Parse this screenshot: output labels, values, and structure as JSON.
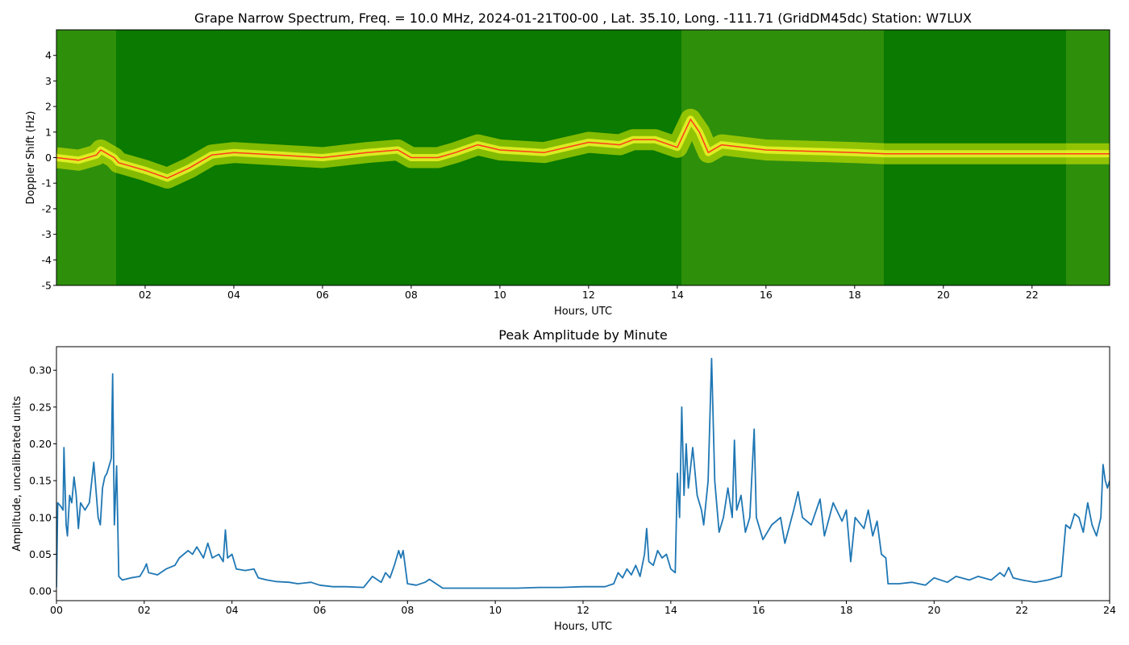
{
  "chart_data": [
    {
      "type": "spectrogram",
      "title": "Grape Narrow Spectrum, Freq. = 10.0 MHz, 2024-01-21T00-00 , Lat.  35.10, Long. -111.71 (GridDM45dc) Station: W7LUX",
      "xlabel": "Hours, UTC",
      "ylabel": "Doppler Shift (Hz)",
      "xlim": [
        0,
        23.75
      ],
      "ylim": [
        -5,
        5
      ],
      "xticks": [
        {
          "value": 2,
          "label": "02"
        },
        {
          "value": 4,
          "label": "04"
        },
        {
          "value": 6,
          "label": "06"
        },
        {
          "value": 8,
          "label": "08"
        },
        10,
        12,
        14,
        16,
        18,
        20,
        22
      ],
      "yticks": [
        -5,
        -4,
        -3,
        -2,
        -1,
        0,
        1,
        2,
        3,
        4
      ],
      "background_color": "#0a7a00",
      "series": [
        {
          "color": "#ff3b1a",
          "x": [
            0,
            0.5,
            0.9,
            1.0,
            1.3,
            1.4,
            2,
            2.5,
            3,
            3.5,
            4,
            5,
            6,
            7,
            7.7,
            8,
            8.6,
            9,
            9.5,
            10,
            11,
            12,
            12.7,
            13,
            13.5,
            14,
            14.3,
            14.5,
            14.7,
            15,
            16,
            17,
            18,
            18.7,
            20,
            22,
            23,
            23.75
          ],
          "values": [
            0,
            -0.1,
            0.1,
            0.3,
            0,
            -0.2,
            -0.5,
            -0.8,
            -0.4,
            0.1,
            0.2,
            0.1,
            0,
            0.2,
            0.3,
            0,
            0,
            0.2,
            0.5,
            0.3,
            0.2,
            0.6,
            0.5,
            0.7,
            0.7,
            0.4,
            1.5,
            1.0,
            0.2,
            0.5,
            0.3,
            0.25,
            0.2,
            0.15,
            0.15,
            0.15,
            0.15,
            0.15
          ]
        }
      ]
    },
    {
      "type": "line",
      "title": "Peak Amplitude by Minute",
      "xlabel": "Hours, UTC",
      "ylabel": "Amplitude, uncalibrated units",
      "xlim": [
        0,
        24
      ],
      "ylim": [
        -0.013,
        0.332
      ],
      "xticks": [
        {
          "value": 0,
          "label": "00"
        },
        {
          "value": 2,
          "label": "02"
        },
        {
          "value": 4,
          "label": "04"
        },
        {
          "value": 6,
          "label": "06"
        },
        {
          "value": 8,
          "label": "08"
        },
        10,
        12,
        14,
        16,
        18,
        20,
        22,
        24
      ],
      "yticks": [
        {
          "value": 0,
          "label": "0.00"
        },
        {
          "value": 0.05,
          "label": "0.05"
        },
        {
          "value": 0.1,
          "label": "0.10"
        },
        {
          "value": 0.15,
          "label": "0.15"
        },
        {
          "value": 0.2,
          "label": "0.20"
        },
        {
          "value": 0.25,
          "label": "0.25"
        },
        {
          "value": 0.3,
          "label": "0.30"
        }
      ],
      "series": [
        {
          "color": "#1f77b4",
          "x": [
            0,
            0.03,
            0.1,
            0.15,
            0.17,
            0.22,
            0.25,
            0.3,
            0.35,
            0.4,
            0.45,
            0.5,
            0.55,
            0.65,
            0.75,
            0.85,
            0.95,
            1.0,
            1.05,
            1.1,
            1.15,
            1.2,
            1.25,
            1.28,
            1.32,
            1.37,
            1.42,
            1.5,
            1.7,
            1.9,
            2.0,
            2.05,
            2.1,
            2.3,
            2.5,
            2.7,
            2.8,
            2.9,
            3.0,
            3.1,
            3.2,
            3.35,
            3.45,
            3.55,
            3.7,
            3.8,
            3.85,
            3.9,
            4.0,
            4.1,
            4.3,
            4.5,
            4.6,
            4.8,
            5.0,
            5.3,
            5.5,
            5.8,
            6.0,
            6.3,
            6.6,
            7.0,
            7.2,
            7.4,
            7.5,
            7.6,
            7.7,
            7.8,
            7.85,
            7.9,
            8.0,
            8.2,
            8.4,
            8.5,
            8.7,
            8.8,
            9.2,
            9.6,
            10.0,
            10.5,
            11.0,
            11.5,
            12.0,
            12.5,
            12.7,
            12.8,
            12.9,
            13.0,
            13.1,
            13.2,
            13.3,
            13.4,
            13.45,
            13.5,
            13.6,
            13.7,
            13.8,
            13.9,
            14.0,
            14.1,
            14.15,
            14.2,
            14.25,
            14.3,
            14.35,
            14.4,
            14.5,
            14.6,
            14.7,
            14.75,
            14.85,
            14.93,
            15.0,
            15.1,
            15.2,
            15.3,
            15.4,
            15.45,
            15.5,
            15.6,
            15.7,
            15.8,
            15.9,
            15.95,
            16.1,
            16.3,
            16.5,
            16.6,
            16.8,
            16.9,
            17.0,
            17.2,
            17.4,
            17.5,
            17.7,
            17.9,
            18.0,
            18.1,
            18.2,
            18.4,
            18.5,
            18.6,
            18.7,
            18.8,
            18.9,
            18.95,
            19.2,
            19.5,
            19.8,
            20.0,
            20.3,
            20.5,
            20.8,
            21.0,
            21.3,
            21.5,
            21.6,
            21.7,
            21.8,
            22.0,
            22.3,
            22.6,
            22.9,
            23.0,
            23.1,
            23.2,
            23.3,
            23.4,
            23.5,
            23.6,
            23.7,
            23.8,
            23.85,
            23.9,
            23.95,
            24.0
          ],
          "values": [
            0.005,
            0.12,
            0.115,
            0.11,
            0.195,
            0.09,
            0.075,
            0.13,
            0.12,
            0.155,
            0.13,
            0.085,
            0.12,
            0.11,
            0.12,
            0.175,
            0.1,
            0.09,
            0.14,
            0.155,
            0.16,
            0.17,
            0.18,
            0.295,
            0.09,
            0.17,
            0.02,
            0.015,
            0.018,
            0.02,
            0.03,
            0.037,
            0.025,
            0.022,
            0.03,
            0.035,
            0.045,
            0.05,
            0.055,
            0.05,
            0.06,
            0.045,
            0.065,
            0.045,
            0.05,
            0.04,
            0.083,
            0.045,
            0.05,
            0.03,
            0.028,
            0.03,
            0.018,
            0.015,
            0.013,
            0.012,
            0.01,
            0.012,
            0.008,
            0.006,
            0.006,
            0.005,
            0.02,
            0.012,
            0.025,
            0.018,
            0.035,
            0.055,
            0.045,
            0.055,
            0.01,
            0.008,
            0.012,
            0.016,
            0.008,
            0.004,
            0.004,
            0.004,
            0.004,
            0.004,
            0.005,
            0.005,
            0.006,
            0.006,
            0.01,
            0.025,
            0.018,
            0.03,
            0.022,
            0.035,
            0.02,
            0.05,
            0.085,
            0.04,
            0.035,
            0.055,
            0.045,
            0.05,
            0.03,
            0.025,
            0.16,
            0.1,
            0.25,
            0.13,
            0.2,
            0.14,
            0.195,
            0.13,
            0.11,
            0.09,
            0.15,
            0.316,
            0.15,
            0.08,
            0.1,
            0.14,
            0.1,
            0.205,
            0.11,
            0.13,
            0.08,
            0.1,
            0.22,
            0.1,
            0.07,
            0.09,
            0.1,
            0.065,
            0.11,
            0.135,
            0.1,
            0.09,
            0.125,
            0.075,
            0.12,
            0.095,
            0.11,
            0.04,
            0.1,
            0.085,
            0.11,
            0.075,
            0.095,
            0.05,
            0.045,
            0.01,
            0.01,
            0.012,
            0.008,
            0.018,
            0.012,
            0.02,
            0.015,
            0.02,
            0.015,
            0.025,
            0.02,
            0.032,
            0.018,
            0.015,
            0.012,
            0.015,
            0.02,
            0.09,
            0.085,
            0.105,
            0.1,
            0.08,
            0.12,
            0.09,
            0.075,
            0.1,
            0.172,
            0.15,
            0.14,
            0.15
          ]
        }
      ]
    }
  ]
}
